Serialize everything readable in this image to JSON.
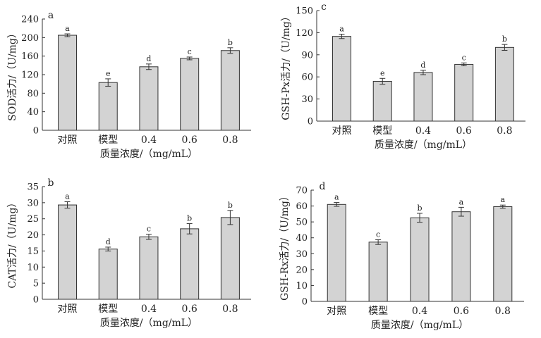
{
  "chart_data": [
    {
      "type": "bar",
      "panel_label": "a",
      "categories": [
        "对照",
        "模型",
        "0.4",
        "0.6",
        "0.8"
      ],
      "values": [
        205,
        103,
        137,
        155,
        172
      ],
      "errors": [
        3,
        8,
        6,
        3,
        6
      ],
      "sig_letters": [
        "a",
        "e",
        "d",
        "c",
        "b"
      ],
      "ylim": [
        0,
        240
      ],
      "yticks": [
        0,
        40,
        80,
        120,
        160,
        200,
        240
      ],
      "ylabel": "SOD活力/（U/mg）",
      "xlabel": "质量浓度/（mg/mL）"
    },
    {
      "type": "bar",
      "panel_label": "c",
      "categories": [
        "对照",
        "模型",
        "0.4",
        "0.6",
        "0.8"
      ],
      "values": [
        115,
        54,
        66,
        77,
        100
      ],
      "errors": [
        3,
        4,
        3,
        2,
        4
      ],
      "sig_letters": [
        "a",
        "e",
        "d",
        "c",
        "b"
      ],
      "ylim": [
        0,
        150
      ],
      "yticks": [
        0,
        30,
        60,
        90,
        120,
        150
      ],
      "ylabel": "GSH-Px活力/（U/mg）",
      "xlabel": "质量浓度/（mg/mL）"
    },
    {
      "type": "bar",
      "panel_label": "b",
      "categories": [
        "对照",
        "模型",
        "0.4",
        "0.6",
        "0.8"
      ],
      "values": [
        29.3,
        15.6,
        19.4,
        21.9,
        25.4
      ],
      "errors": [
        1.0,
        0.6,
        0.8,
        1.6,
        2.2
      ],
      "sig_letters": [
        "a",
        "d",
        "c",
        "b",
        "b"
      ],
      "ylim": [
        0,
        35
      ],
      "yticks": [
        0,
        5,
        10,
        15,
        20,
        25,
        30,
        35
      ],
      "ylabel": "CAT活力/（U/mg）",
      "xlabel": "质量浓度/（mg/mL）"
    },
    {
      "type": "bar",
      "panel_label": "d",
      "categories": [
        "对照",
        "模型",
        "0.4",
        "0.6",
        "0.8"
      ],
      "values": [
        61,
        37.3,
        52.6,
        56.4,
        59.6
      ],
      "errors": [
        1.2,
        1.5,
        2.8,
        2.8,
        1.0
      ],
      "sig_letters": [
        "a",
        "c",
        "b",
        "a",
        "a"
      ],
      "ylim": [
        0,
        70
      ],
      "yticks": [
        0,
        10,
        20,
        30,
        40,
        50,
        60,
        70
      ],
      "ylabel": "GSH-Rx活力/（U/mg）",
      "xlabel": "质量浓度/（mg/mL）"
    }
  ],
  "colors": {
    "bar_fill": "#d3d3d3",
    "stroke": "#333333",
    "text": "#222222"
  }
}
